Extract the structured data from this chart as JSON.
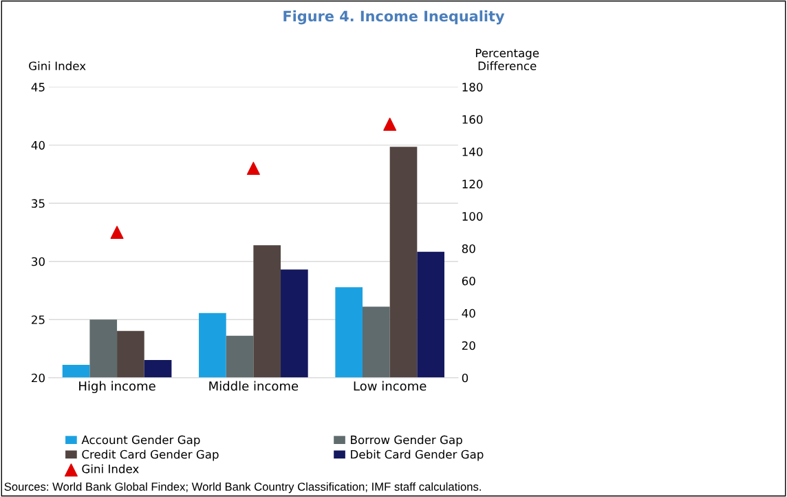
{
  "chart_data": {
    "type": "bar",
    "title": "Figure 4. Income Inequality",
    "categories": [
      "High income",
      "Middle income",
      "Low income"
    ],
    "ylabel": "Gini Index",
    "y2label": "Percentage\nDifference",
    "series": [
      {
        "name": "Account Gender Gap",
        "color": "#1ba1e2",
        "values": [
          8,
          40,
          56
        ],
        "axis": "y2"
      },
      {
        "name": "Borrow Gender Gap",
        "color": "#5f6b6d",
        "values": [
          36,
          26,
          44
        ],
        "axis": "y2"
      },
      {
        "name": "Credit Card Gender Gap",
        "color": "#524441",
        "values": [
          29,
          82,
          143
        ],
        "axis": "y2"
      },
      {
        "name": "Debit Card Gender Gap",
        "color": "#14185e",
        "values": [
          11,
          67,
          78
        ],
        "axis": "y2"
      },
      {
        "name": "Gini Index",
        "type": "scatter",
        "color": "#e00000",
        "marker": "triangle",
        "values": [
          32.5,
          38.0,
          41.8
        ]
      }
    ],
    "ylim": [
      20,
      45
    ],
    "yticks": [
      20,
      25,
      30,
      35,
      40,
      45
    ],
    "y2lim": [
      0,
      180
    ],
    "y2ticks": [
      0,
      20,
      40,
      60,
      80,
      100,
      120,
      140,
      160,
      180
    ],
    "grid": "y",
    "legend": "bottom",
    "annotations": [
      "Sources: World Bank Global Findex; World Bank Country Classification; IMF staff calculations."
    ]
  }
}
